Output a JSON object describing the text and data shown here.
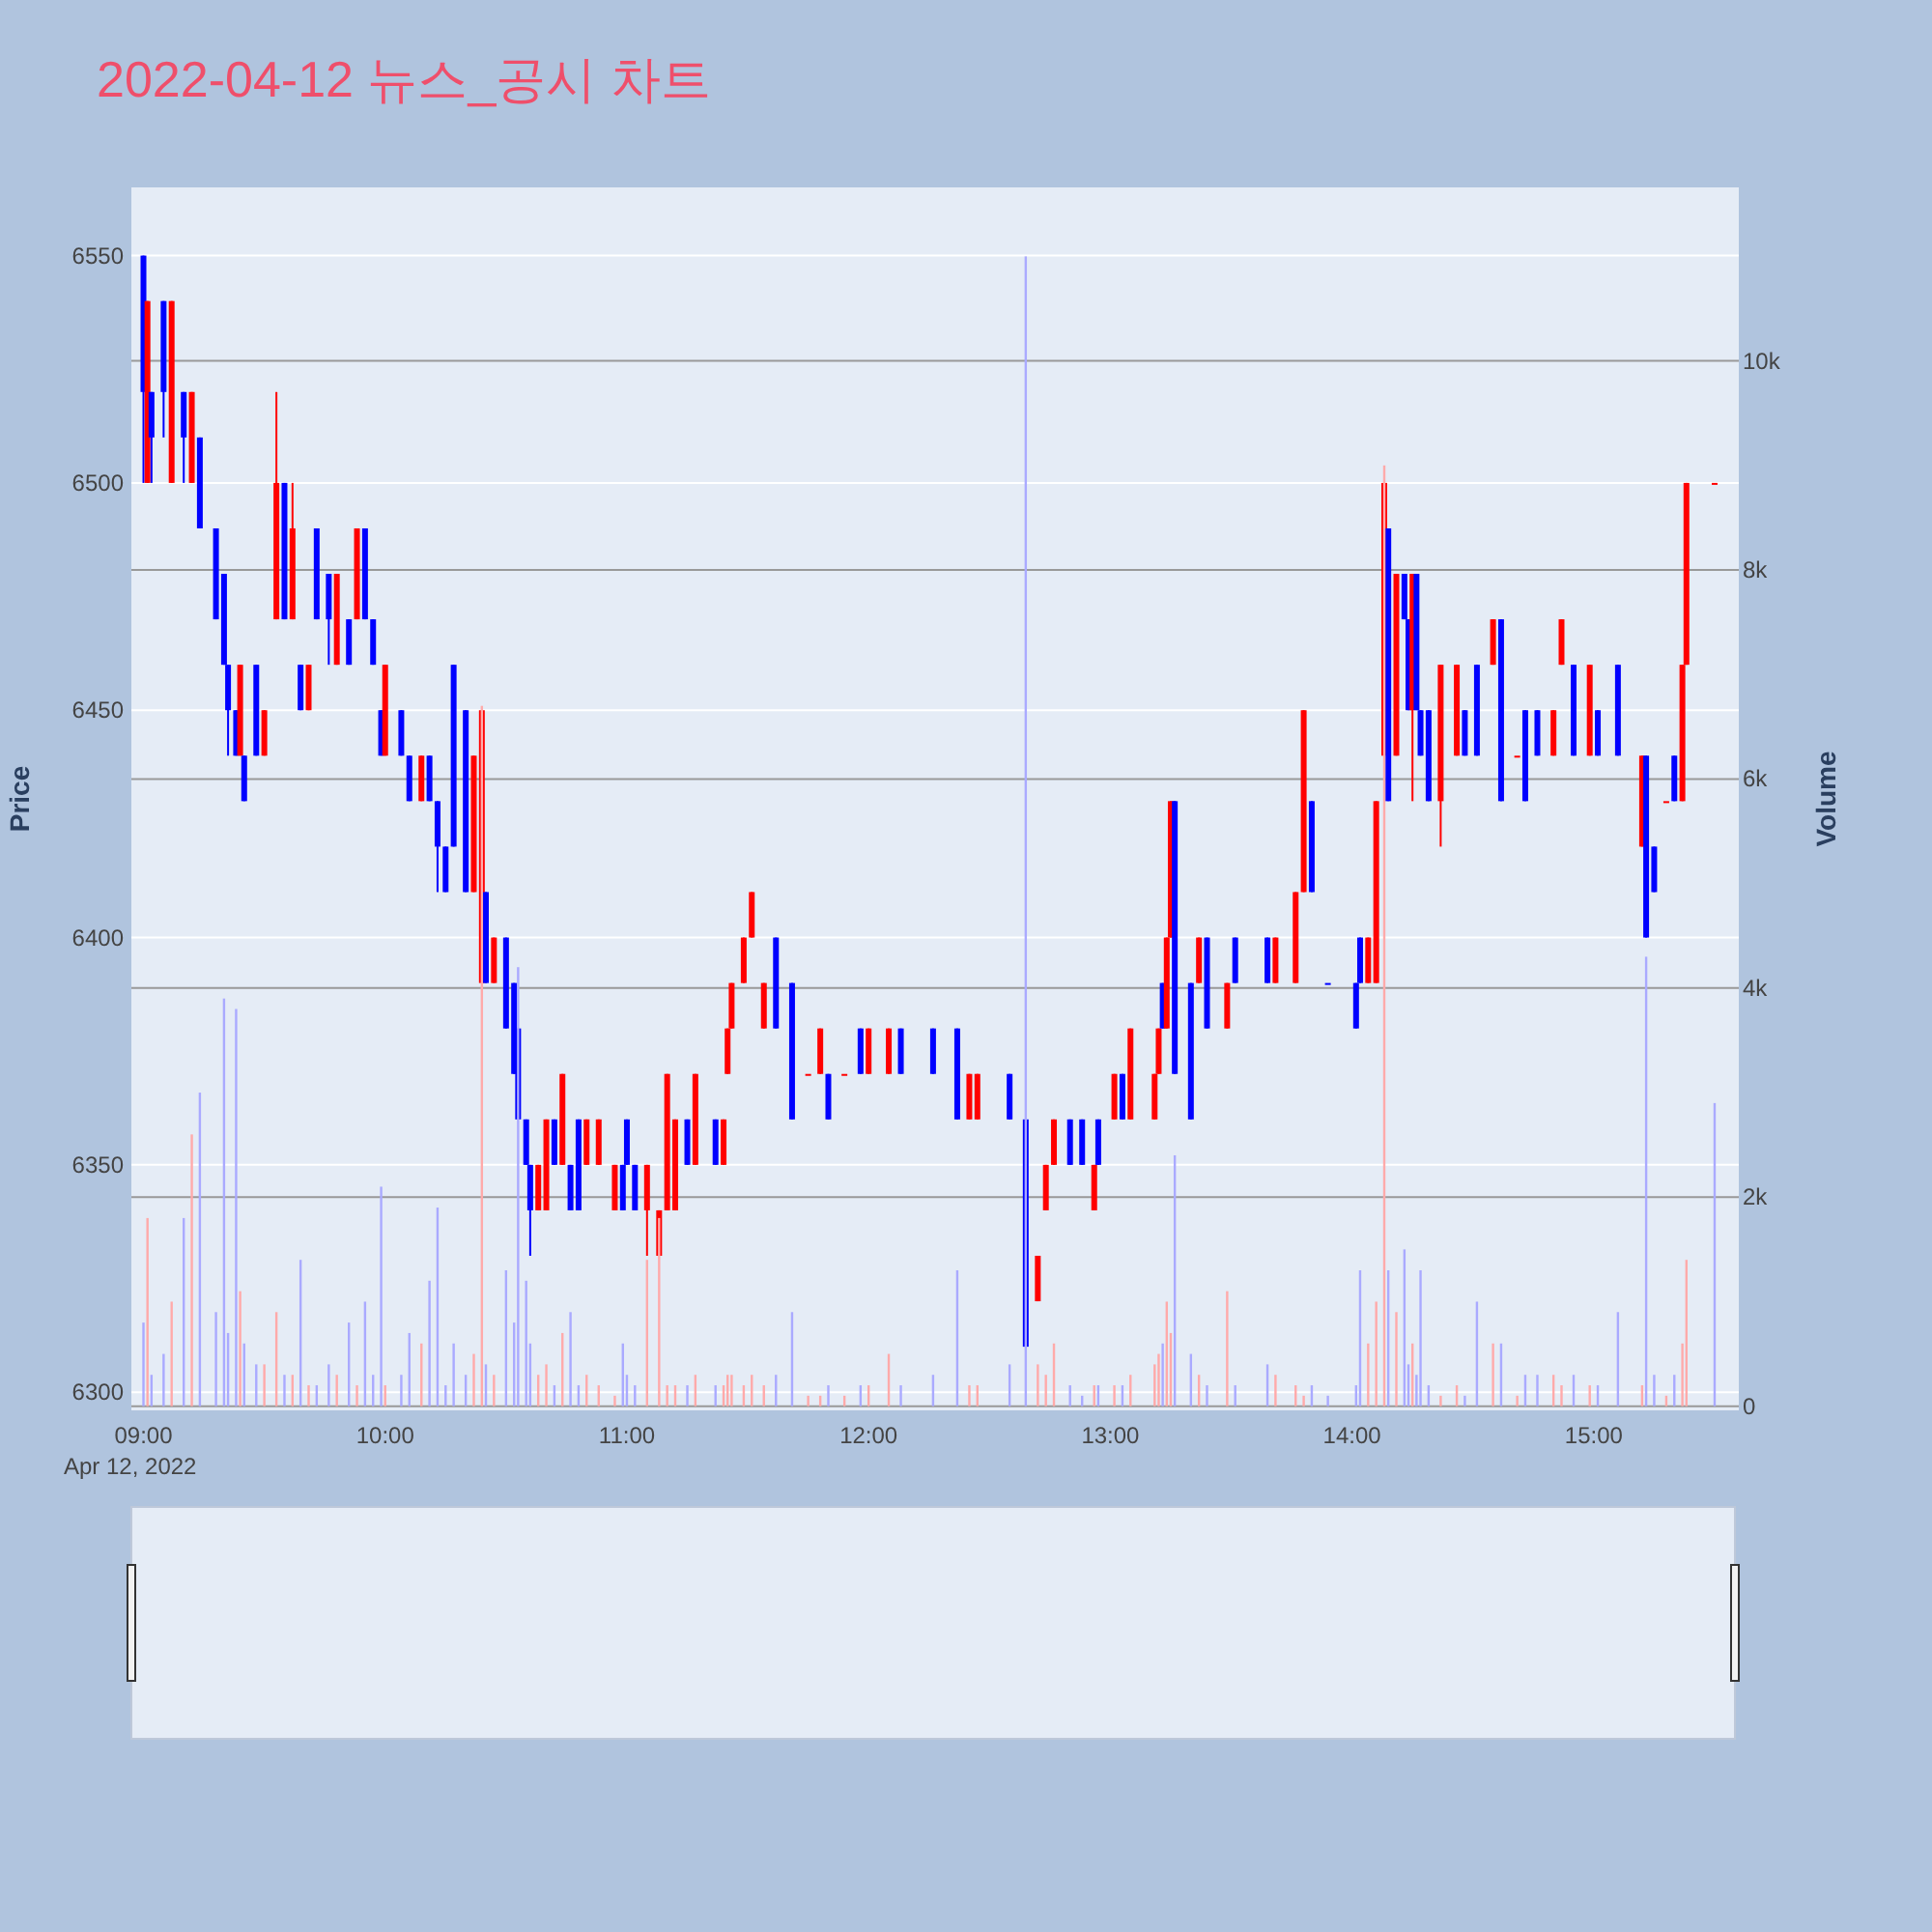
{
  "chart_data": {
    "type": "candlestick",
    "title": "2022-04-12 뉴스_공시 차트",
    "ylabel": "Price",
    "y2label": "Volume",
    "annotations": [
      "Apr 12, 2022"
    ],
    "x": [
      "2022-04-12T09:00",
      "2022-04-12T09:01",
      "2022-04-12T09:02",
      "2022-04-12T09:05",
      "2022-04-12T09:07",
      "2022-04-12T09:10",
      "2022-04-12T09:12",
      "2022-04-12T09:14",
      "2022-04-12T09:18",
      "2022-04-12T09:20",
      "2022-04-12T09:21",
      "2022-04-12T09:23",
      "2022-04-12T09:24",
      "2022-04-12T09:25",
      "2022-04-12T09:28",
      "2022-04-12T09:30",
      "2022-04-12T09:33",
      "2022-04-12T09:35",
      "2022-04-12T09:37",
      "2022-04-12T09:39",
      "2022-04-12T09:41",
      "2022-04-12T09:43",
      "2022-04-12T09:46",
      "2022-04-12T09:48",
      "2022-04-12T09:51",
      "2022-04-12T09:53",
      "2022-04-12T09:55",
      "2022-04-12T09:57",
      "2022-04-12T09:59",
      "2022-04-12T10:00",
      "2022-04-12T10:04",
      "2022-04-12T10:06",
      "2022-04-12T10:09",
      "2022-04-12T10:11",
      "2022-04-12T10:13",
      "2022-04-12T10:15",
      "2022-04-12T10:17",
      "2022-04-12T10:20",
      "2022-04-12T10:22",
      "2022-04-12T10:24",
      "2022-04-12T10:25",
      "2022-04-12T10:27",
      "2022-04-12T10:30",
      "2022-04-12T10:32",
      "2022-04-12T10:33",
      "2022-04-12T10:35",
      "2022-04-12T10:36",
      "2022-04-12T10:38",
      "2022-04-12T10:40",
      "2022-04-12T10:42",
      "2022-04-12T10:44",
      "2022-04-12T10:46",
      "2022-04-12T10:48",
      "2022-04-12T10:50",
      "2022-04-12T10:53",
      "2022-04-12T10:57",
      "2022-04-12T10:59",
      "2022-04-12T11:00",
      "2022-04-12T11:02",
      "2022-04-12T11:05",
      "2022-04-12T11:08",
      "2022-04-12T11:10",
      "2022-04-12T11:12",
      "2022-04-12T11:15",
      "2022-04-12T11:17",
      "2022-04-12T11:22",
      "2022-04-12T11:24",
      "2022-04-12T11:25",
      "2022-04-12T11:26",
      "2022-04-12T11:29",
      "2022-04-12T11:31",
      "2022-04-12T11:34",
      "2022-04-12T11:37",
      "2022-04-12T11:41",
      "2022-04-12T11:45",
      "2022-04-12T11:48",
      "2022-04-12T11:50",
      "2022-04-12T11:54",
      "2022-04-12T11:58",
      "2022-04-12T12:00",
      "2022-04-12T12:05",
      "2022-04-12T12:08",
      "2022-04-12T12:16",
      "2022-04-12T12:22",
      "2022-04-12T12:25",
      "2022-04-12T12:27",
      "2022-04-12T12:35",
      "2022-04-12T12:39",
      "2022-04-12T12:42",
      "2022-04-12T12:44",
      "2022-04-12T12:46",
      "2022-04-12T12:50",
      "2022-04-12T12:53",
      "2022-04-12T12:56",
      "2022-04-12T12:57",
      "2022-04-12T13:01",
      "2022-04-12T13:03",
      "2022-04-12T13:05",
      "2022-04-12T13:11",
      "2022-04-12T13:12",
      "2022-04-12T13:13",
      "2022-04-12T13:14",
      "2022-04-12T13:15",
      "2022-04-12T13:16",
      "2022-04-12T13:20",
      "2022-04-12T13:22",
      "2022-04-12T13:24",
      "2022-04-12T13:29",
      "2022-04-12T13:31",
      "2022-04-12T13:39",
      "2022-04-12T13:41",
      "2022-04-12T13:46",
      "2022-04-12T13:48",
      "2022-04-12T13:50",
      "2022-04-12T13:54",
      "2022-04-12T14:01",
      "2022-04-12T14:02",
      "2022-04-12T14:04",
      "2022-04-12T14:06",
      "2022-04-12T14:08",
      "2022-04-12T14:09",
      "2022-04-12T14:11",
      "2022-04-12T14:13",
      "2022-04-12T14:14",
      "2022-04-12T14:15",
      "2022-04-12T14:16",
      "2022-04-12T14:17",
      "2022-04-12T14:19",
      "2022-04-12T14:22",
      "2022-04-12T14:26",
      "2022-04-12T14:28",
      "2022-04-12T14:31",
      "2022-04-12T14:35",
      "2022-04-12T14:37",
      "2022-04-12T14:41",
      "2022-04-12T14:43",
      "2022-04-12T14:46",
      "2022-04-12T14:50",
      "2022-04-12T14:52",
      "2022-04-12T14:55",
      "2022-04-12T14:59",
      "2022-04-12T15:01",
      "2022-04-12T15:06",
      "2022-04-12T15:12",
      "2022-04-12T15:13",
      "2022-04-12T15:15",
      "2022-04-12T15:18",
      "2022-04-12T15:20",
      "2022-04-12T15:22",
      "2022-04-12T15:23",
      "2022-04-12T15:30"
    ],
    "ohlc": [
      [
        6550,
        6550,
        6500,
        6520
      ],
      [
        6500,
        6540,
        6500,
        6540
      ],
      [
        6520,
        6520,
        6500,
        6510
      ],
      [
        6540,
        6540,
        6510,
        6520
      ],
      [
        6500,
        6540,
        6500,
        6540
      ],
      [
        6520,
        6520,
        6500,
        6510
      ],
      [
        6500,
        6520,
        6500,
        6520
      ],
      [
        6510,
        6510,
        6490,
        6490
      ],
      [
        6490,
        6490,
        6470,
        6470
      ],
      [
        6480,
        6480,
        6460,
        6460
      ],
      [
        6460,
        6460,
        6440,
        6450
      ],
      [
        6450,
        6450,
        6440,
        6440
      ],
      [
        6440,
        6460,
        6440,
        6460
      ],
      [
        6440,
        6440,
        6430,
        6430
      ],
      [
        6460,
        6460,
        6440,
        6440
      ],
      [
        6440,
        6450,
        6440,
        6450
      ],
      [
        6470,
        6520,
        6470,
        6500
      ],
      [
        6500,
        6500,
        6470,
        6470
      ],
      [
        6470,
        6500,
        6470,
        6490
      ],
      [
        6460,
        6460,
        6450,
        6450
      ],
      [
        6450,
        6460,
        6450,
        6460
      ],
      [
        6490,
        6490,
        6470,
        6470
      ],
      [
        6480,
        6480,
        6460,
        6470
      ],
      [
        6460,
        6480,
        6460,
        6480
      ],
      [
        6470,
        6470,
        6460,
        6460
      ],
      [
        6470,
        6490,
        6470,
        6490
      ],
      [
        6490,
        6490,
        6470,
        6470
      ],
      [
        6470,
        6470,
        6460,
        6460
      ],
      [
        6450,
        6450,
        6440,
        6440
      ],
      [
        6440,
        6460,
        6440,
        6460
      ],
      [
        6450,
        6450,
        6440,
        6440
      ],
      [
        6440,
        6440,
        6430,
        6430
      ],
      [
        6430,
        6440,
        6430,
        6440
      ],
      [
        6440,
        6440,
        6430,
        6430
      ],
      [
        6430,
        6430,
        6410,
        6420
      ],
      [
        6420,
        6420,
        6410,
        6410
      ],
      [
        6460,
        6460,
        6420,
        6420
      ],
      [
        6450,
        6450,
        6410,
        6410
      ],
      [
        6410,
        6440,
        6410,
        6440
      ],
      [
        6390,
        6450,
        6390,
        6450
      ],
      [
        6410,
        6410,
        6390,
        6390
      ],
      [
        6390,
        6400,
        6390,
        6400
      ],
      [
        6400,
        6400,
        6380,
        6380
      ],
      [
        6390,
        6390,
        6370,
        6370
      ],
      [
        6380,
        6380,
        6360,
        6360
      ],
      [
        6360,
        6360,
        6350,
        6350
      ],
      [
        6350,
        6350,
        6330,
        6340
      ],
      [
        6340,
        6350,
        6340,
        6350
      ],
      [
        6340,
        6360,
        6340,
        6360
      ],
      [
        6360,
        6360,
        6350,
        6350
      ],
      [
        6350,
        6370,
        6350,
        6370
      ],
      [
        6350,
        6350,
        6340,
        6340
      ],
      [
        6360,
        6360,
        6340,
        6340
      ],
      [
        6350,
        6360,
        6350,
        6360
      ],
      [
        6350,
        6360,
        6350,
        6360
      ],
      [
        6340,
        6350,
        6340,
        6350
      ],
      [
        6350,
        6350,
        6340,
        6340
      ],
      [
        6360,
        6360,
        6350,
        6350
      ],
      [
        6350,
        6350,
        6340,
        6340
      ],
      [
        6340,
        6350,
        6330,
        6350
      ],
      [
        6330,
        6340,
        6330,
        6340
      ],
      [
        6340,
        6370,
        6340,
        6370
      ],
      [
        6340,
        6360,
        6340,
        6360
      ],
      [
        6360,
        6360,
        6350,
        6350
      ],
      [
        6350,
        6370,
        6350,
        6370
      ],
      [
        6360,
        6360,
        6350,
        6350
      ],
      [
        6350,
        6360,
        6350,
        6360
      ],
      [
        6370,
        6380,
        6370,
        6380
      ],
      [
        6380,
        6390,
        6380,
        6390
      ],
      [
        6390,
        6400,
        6390,
        6400
      ],
      [
        6400,
        6410,
        6400,
        6410
      ],
      [
        6380,
        6390,
        6380,
        6390
      ],
      [
        6400,
        6400,
        6380,
        6380
      ],
      [
        6390,
        6390,
        6360,
        6360
      ],
      [
        6370,
        6370,
        6370,
        6370
      ],
      [
        6370,
        6380,
        6370,
        6380
      ],
      [
        6370,
        6370,
        6360,
        6360
      ],
      [
        6370,
        6370,
        6370,
        6370
      ],
      [
        6380,
        6380,
        6370,
        6370
      ],
      [
        6370,
        6380,
        6370,
        6380
      ],
      [
        6370,
        6380,
        6370,
        6380
      ],
      [
        6380,
        6380,
        6370,
        6370
      ],
      [
        6380,
        6380,
        6370,
        6370
      ],
      [
        6380,
        6380,
        6360,
        6360
      ],
      [
        6360,
        6370,
        6360,
        6370
      ],
      [
        6360,
        6370,
        6360,
        6370
      ],
      [
        6370,
        6370,
        6360,
        6360
      ],
      [
        6360,
        6360,
        6310,
        6310
      ],
      [
        6320,
        6330,
        6320,
        6330
      ],
      [
        6340,
        6350,
        6340,
        6350
      ],
      [
        6350,
        6360,
        6350,
        6360
      ],
      [
        6360,
        6360,
        6350,
        6350
      ],
      [
        6360,
        6360,
        6350,
        6350
      ],
      [
        6340,
        6350,
        6340,
        6350
      ],
      [
        6360,
        6360,
        6350,
        6350
      ],
      [
        6360,
        6370,
        6360,
        6370
      ],
      [
        6370,
        6370,
        6360,
        6360
      ],
      [
        6360,
        6380,
        6360,
        6380
      ],
      [
        6360,
        6370,
        6360,
        6370
      ],
      [
        6370,
        6380,
        6370,
        6380
      ],
      [
        6390,
        6390,
        6380,
        6380
      ],
      [
        6380,
        6400,
        6380,
        6400
      ],
      [
        6400,
        6430,
        6400,
        6430
      ],
      [
        6430,
        6430,
        6370,
        6370
      ],
      [
        6390,
        6390,
        6360,
        6360
      ],
      [
        6390,
        6400,
        6390,
        6400
      ],
      [
        6400,
        6400,
        6380,
        6380
      ],
      [
        6380,
        6390,
        6380,
        6390
      ],
      [
        6400,
        6400,
        6390,
        6390
      ],
      [
        6400,
        6400,
        6390,
        6390
      ],
      [
        6390,
        6400,
        6390,
        6400
      ],
      [
        6390,
        6410,
        6390,
        6410
      ],
      [
        6410,
        6450,
        6410,
        6450
      ],
      [
        6430,
        6430,
        6410,
        6410
      ],
      [
        6390,
        6390,
        6390,
        6390
      ],
      [
        6390,
        6390,
        6380,
        6380
      ],
      [
        6400,
        6400,
        6390,
        6390
      ],
      [
        6390,
        6400,
        6390,
        6400
      ],
      [
        6390,
        6430,
        6390,
        6430
      ],
      [
        6440,
        6500,
        6440,
        6500
      ],
      [
        6490,
        6490,
        6430,
        6430
      ],
      [
        6440,
        6480,
        6440,
        6480
      ],
      [
        6480,
        6480,
        6470,
        6470
      ],
      [
        6470,
        6470,
        6450,
        6450
      ],
      [
        6450,
        6480,
        6430,
        6480
      ],
      [
        6480,
        6480,
        6450,
        6450
      ],
      [
        6450,
        6450,
        6440,
        6440
      ],
      [
        6450,
        6450,
        6430,
        6430
      ],
      [
        6430,
        6460,
        6420,
        6460
      ],
      [
        6440,
        6460,
        6440,
        6460
      ],
      [
        6450,
        6450,
        6440,
        6440
      ],
      [
        6460,
        6460,
        6440,
        6440
      ],
      [
        6460,
        6470,
        6460,
        6470
      ],
      [
        6470,
        6470,
        6430,
        6430
      ],
      [
        6440,
        6440,
        6440,
        6440
      ],
      [
        6450,
        6450,
        6430,
        6430
      ],
      [
        6450,
        6450,
        6440,
        6440
      ],
      [
        6440,
        6450,
        6440,
        6450
      ],
      [
        6460,
        6470,
        6460,
        6470
      ],
      [
        6460,
        6460,
        6440,
        6440
      ],
      [
        6440,
        6460,
        6440,
        6460
      ],
      [
        6450,
        6450,
        6440,
        6440
      ],
      [
        6460,
        6460,
        6440,
        6440
      ],
      [
        6420,
        6440,
        6420,
        6440
      ],
      [
        6440,
        6440,
        6400,
        6400
      ],
      [
        6420,
        6420,
        6410,
        6410
      ],
      [
        6430,
        6430,
        6430,
        6430
      ],
      [
        6440,
        6440,
        6430,
        6430
      ],
      [
        6430,
        6460,
        6430,
        6460
      ],
      [
        6460,
        6500,
        6460,
        6500
      ],
      [
        6500,
        6500,
        6500,
        6500
      ]
    ],
    "colors": [
      "#0000ff",
      "#ff0000",
      "#0000ff",
      "#0000ff",
      "#ff0000",
      "#0000ff",
      "#ff0000",
      "#0000ff",
      "#0000ff",
      "#0000ff",
      "#0000ff",
      "#0000ff",
      "#ff0000",
      "#0000ff",
      "#0000ff",
      "#ff0000",
      "#ff0000",
      "#0000ff",
      "#ff0000",
      "#0000ff",
      "#ff0000",
      "#0000ff",
      "#0000ff",
      "#ff0000",
      "#0000ff",
      "#ff0000",
      "#0000ff",
      "#0000ff",
      "#0000ff",
      "#ff0000",
      "#0000ff",
      "#0000ff",
      "#ff0000",
      "#0000ff",
      "#0000ff",
      "#0000ff",
      "#0000ff",
      "#0000ff",
      "#ff0000",
      "#ff0000",
      "#0000ff",
      "#ff0000",
      "#0000ff",
      "#0000ff",
      "#0000ff",
      "#0000ff",
      "#0000ff",
      "#ff0000",
      "#ff0000",
      "#0000ff",
      "#ff0000",
      "#0000ff",
      "#0000ff",
      "#ff0000",
      "#ff0000",
      "#ff0000",
      "#0000ff",
      "#0000ff",
      "#0000ff",
      "#ff0000",
      "#ff0000",
      "#ff0000",
      "#ff0000",
      "#0000ff",
      "#ff0000",
      "#0000ff",
      "#ff0000",
      "#ff0000",
      "#ff0000",
      "#ff0000",
      "#ff0000",
      "#ff0000",
      "#0000ff",
      "#0000ff",
      "#ff0000",
      "#ff0000",
      "#0000ff",
      "#ff0000",
      "#0000ff",
      "#ff0000",
      "#ff0000",
      "#0000ff",
      "#0000ff",
      "#0000ff",
      "#ff0000",
      "#ff0000",
      "#0000ff",
      "#0000ff",
      "#ff0000",
      "#ff0000",
      "#ff0000",
      "#0000ff",
      "#0000ff",
      "#ff0000",
      "#0000ff",
      "#ff0000",
      "#0000ff",
      "#ff0000",
      "#ff0000",
      "#ff0000",
      "#0000ff",
      "#ff0000",
      "#ff0000",
      "#0000ff",
      "#0000ff",
      "#ff0000",
      "#0000ff",
      "#ff0000",
      "#0000ff",
      "#0000ff",
      "#ff0000",
      "#ff0000",
      "#ff0000",
      "#0000ff",
      "#0000ff",
      "#0000ff",
      "#0000ff",
      "#ff0000",
      "#ff0000",
      "#ff0000",
      "#0000ff",
      "#ff0000",
      "#0000ff",
      "#0000ff",
      "#ff0000",
      "#0000ff",
      "#0000ff",
      "#0000ff",
      "#ff0000",
      "#ff0000",
      "#0000ff",
      "#0000ff",
      "#ff0000",
      "#0000ff",
      "#ff0000",
      "#0000ff",
      "#0000ff",
      "#ff0000",
      "#ff0000",
      "#0000ff",
      "#ff0000",
      "#0000ff",
      "#0000ff",
      "#ff0000",
      "#0000ff",
      "#0000ff",
      "#ff0000",
      "#0000ff",
      "#ff0000",
      "#ff0000",
      "#ff0000"
    ],
    "series": [
      {
        "type": "bar",
        "axis": "y2",
        "values": [
          800,
          1800,
          300,
          500,
          1000,
          1800,
          2600,
          3000,
          900,
          3900,
          700,
          3800,
          1100,
          600,
          400,
          400,
          900,
          300,
          300,
          1400,
          200,
          200,
          400,
          300,
          800,
          200,
          1000,
          300,
          2100,
          200,
          300,
          700,
          600,
          1200,
          1900,
          200,
          600,
          300,
          500,
          6700,
          400,
          300,
          1300,
          800,
          4200,
          1200,
          600,
          300,
          400,
          200,
          700,
          900,
          200,
          300,
          200,
          100,
          600,
          300,
          200,
          1400,
          1800,
          200,
          200,
          200,
          300,
          200,
          200,
          300,
          300,
          200,
          300,
          200,
          300,
          900,
          100,
          100,
          200,
          100,
          200,
          200,
          500,
          200,
          300,
          1300,
          200,
          200,
          400,
          11000,
          400,
          300,
          600,
          200,
          100,
          200,
          200,
          200,
          200,
          300,
          400,
          500,
          600,
          1000,
          700,
          2400,
          500,
          300,
          200,
          1100,
          200,
          400,
          300,
          200,
          100,
          200,
          100,
          200,
          1300,
          600,
          1000,
          9000,
          1300,
          900,
          1500,
          400,
          600,
          300,
          1300,
          200,
          100,
          200,
          100,
          1000,
          600,
          600,
          100,
          300,
          300,
          300,
          200,
          300,
          200,
          200,
          900,
          200,
          4300,
          300,
          100,
          300,
          600,
          1400,
          2900
        ],
        "colors": [
          "#aaaaff",
          "#ffaaaa",
          "#aaaaff",
          "#aaaaff",
          "#ffaaaa",
          "#aaaaff",
          "#ffaaaa",
          "#aaaaff",
          "#aaaaff",
          "#aaaaff",
          "#aaaaff",
          "#aaaaff",
          "#ffaaaa",
          "#aaaaff",
          "#aaaaff",
          "#ffaaaa",
          "#ffaaaa",
          "#aaaaff",
          "#ffaaaa",
          "#aaaaff",
          "#ffaaaa",
          "#aaaaff",
          "#aaaaff",
          "#ffaaaa",
          "#aaaaff",
          "#ffaaaa",
          "#aaaaff",
          "#aaaaff",
          "#aaaaff",
          "#ffaaaa",
          "#aaaaff",
          "#aaaaff",
          "#ffaaaa",
          "#aaaaff",
          "#aaaaff",
          "#aaaaff",
          "#aaaaff",
          "#aaaaff",
          "#ffaaaa",
          "#ffaaaa",
          "#aaaaff",
          "#ffaaaa",
          "#aaaaff",
          "#aaaaff",
          "#aaaaff",
          "#aaaaff",
          "#aaaaff",
          "#ffaaaa",
          "#ffaaaa",
          "#aaaaff",
          "#ffaaaa",
          "#aaaaff",
          "#aaaaff",
          "#ffaaaa",
          "#ffaaaa",
          "#ffaaaa",
          "#aaaaff",
          "#aaaaff",
          "#aaaaff",
          "#ffaaaa",
          "#ffaaaa",
          "#ffaaaa",
          "#ffaaaa",
          "#aaaaff",
          "#ffaaaa",
          "#aaaaff",
          "#ffaaaa",
          "#ffaaaa",
          "#ffaaaa",
          "#ffaaaa",
          "#ffaaaa",
          "#ffaaaa",
          "#aaaaff",
          "#aaaaff",
          "#ffaaaa",
          "#ffaaaa",
          "#aaaaff",
          "#ffaaaa",
          "#aaaaff",
          "#ffaaaa",
          "#ffaaaa",
          "#aaaaff",
          "#aaaaff",
          "#aaaaff",
          "#ffaaaa",
          "#ffaaaa",
          "#aaaaff",
          "#aaaaff",
          "#ffaaaa",
          "#ffaaaa",
          "#ffaaaa",
          "#aaaaff",
          "#aaaaff",
          "#ffaaaa",
          "#aaaaff",
          "#ffaaaa",
          "#aaaaff",
          "#ffaaaa",
          "#ffaaaa",
          "#ffaaaa",
          "#aaaaff",
          "#ffaaaa",
          "#ffaaaa",
          "#aaaaff",
          "#aaaaff",
          "#ffaaaa",
          "#aaaaff",
          "#ffaaaa",
          "#aaaaff",
          "#aaaaff",
          "#ffaaaa",
          "#ffaaaa",
          "#ffaaaa",
          "#aaaaff",
          "#aaaaff",
          "#aaaaff",
          "#aaaaff",
          "#ffaaaa",
          "#ffaaaa",
          "#ffaaaa",
          "#aaaaff",
          "#ffaaaa",
          "#aaaaff",
          "#aaaaff",
          "#ffaaaa",
          "#aaaaff",
          "#aaaaff",
          "#aaaaff",
          "#ffaaaa",
          "#ffaaaa",
          "#aaaaff",
          "#aaaaff",
          "#ffaaaa",
          "#aaaaff",
          "#ffaaaa",
          "#aaaaff",
          "#aaaaff",
          "#ffaaaa",
          "#ffaaaa",
          "#aaaaff",
          "#ffaaaa",
          "#aaaaff",
          "#aaaaff",
          "#ffaaaa",
          "#aaaaff",
          "#aaaaff",
          "#ffaaaa",
          "#aaaaff",
          "#ffaaaa",
          "#ffaaaa",
          "#aaaaff"
        ]
      }
    ],
    "xlim": [
      "2022-04-12T08:57",
      "2022-04-12T15:36"
    ],
    "xticks": [
      {
        "value": "2022-04-12T09:00",
        "label": "09:00"
      },
      {
        "value": "2022-04-12T10:00",
        "label": "10:00"
      },
      {
        "value": "2022-04-12T11:00",
        "label": "11:00"
      },
      {
        "value": "2022-04-12T12:00",
        "label": "12:00"
      },
      {
        "value": "2022-04-12T13:00",
        "label": "13:00"
      },
      {
        "value": "2022-04-12T14:00",
        "label": "14:00"
      },
      {
        "value": "2022-04-12T15:00",
        "label": "15:00"
      }
    ],
    "ylim": [
      6296,
      6565
    ],
    "yticks": [
      6300,
      6350,
      6400,
      6450,
      6500,
      6550
    ],
    "y2lim": [
      -40,
      11660
    ],
    "y2ticks": [
      0,
      {
        "value": 2000,
        "label": "2k"
      },
      {
        "value": 4000,
        "label": "4k"
      },
      {
        "value": 6000,
        "label": "6k"
      },
      {
        "value": 8000,
        "label": "8k"
      },
      {
        "value": 10000,
        "label": "10k"
      }
    ],
    "grid": "y"
  }
}
